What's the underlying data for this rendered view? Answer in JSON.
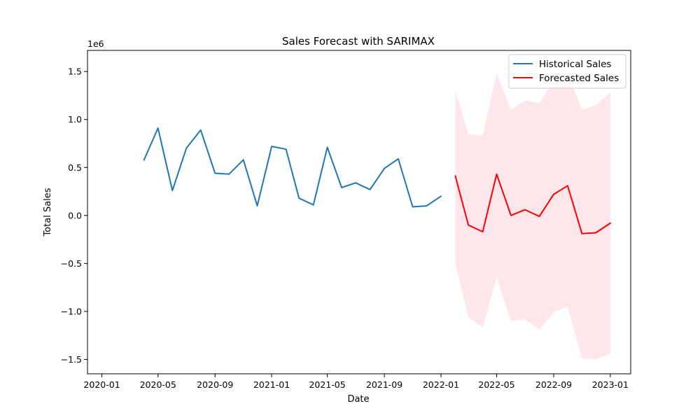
{
  "chart_data": {
    "type": "line",
    "title": "Sales Forecast with SARIMAX",
    "xlabel": "Date",
    "ylabel": "Total Sales",
    "y_offset_label": "1e6",
    "y_unit_multiplier": 1000000,
    "xlim": [
      "2019-12-01",
      "2023-02-14"
    ],
    "ylim": [
      -1.65,
      1.72
    ],
    "x_ticks": [
      "2020-01",
      "2020-05",
      "2020-09",
      "2021-01",
      "2021-05",
      "2021-09",
      "2022-01",
      "2022-05",
      "2022-09",
      "2023-01"
    ],
    "y_ticks": [
      1.5,
      1.0,
      0.5,
      0.0,
      -0.5,
      -1.0,
      -1.5
    ],
    "y_tick_labels": [
      "1.5",
      "1.0",
      "0.5",
      "0.0",
      "−0.5",
      "−1.0",
      "−1.5"
    ],
    "grid": false,
    "legend_position": "top-right",
    "series": [
      {
        "name": "Historical Sales",
        "color": "#1f77b4",
        "x": [
          "2020-04-01",
          "2020-05-01",
          "2020-06-01",
          "2020-07-01",
          "2020-08-01",
          "2020-09-01",
          "2020-10-01",
          "2020-11-01",
          "2020-12-01",
          "2021-01-01",
          "2021-02-01",
          "2021-03-01",
          "2021-04-01",
          "2021-05-01",
          "2021-06-01",
          "2021-07-01",
          "2021-08-01",
          "2021-09-01",
          "2021-10-01",
          "2021-11-01",
          "2021-12-01",
          "2022-01-01"
        ],
        "y": [
          0.58,
          0.91,
          0.26,
          0.7,
          0.89,
          0.44,
          0.43,
          0.58,
          0.1,
          0.72,
          0.69,
          0.18,
          0.11,
          0.71,
          0.29,
          0.34,
          0.27,
          0.49,
          0.59,
          0.09,
          0.1,
          0.2
        ]
      },
      {
        "name": "Forecasted Sales",
        "color": "#ff0000",
        "x": [
          "2022-02-01",
          "2022-03-01",
          "2022-04-01",
          "2022-05-01",
          "2022-06-01",
          "2022-07-01",
          "2022-08-01",
          "2022-09-01",
          "2022-10-01",
          "2022-11-01",
          "2022-12-01",
          "2023-01-01"
        ],
        "y": [
          0.41,
          -0.1,
          -0.17,
          0.43,
          0.0,
          0.06,
          -0.01,
          0.22,
          0.31,
          -0.19,
          -0.18,
          -0.08
        ]
      }
    ],
    "confidence_band": {
      "color": "#ffc0cb",
      "opacity": 0.4,
      "x": [
        "2022-02-01",
        "2022-03-01",
        "2022-04-01",
        "2022-05-01",
        "2022-06-01",
        "2022-07-01",
        "2022-08-01",
        "2022-09-01",
        "2022-10-01",
        "2022-11-01",
        "2022-12-01",
        "2023-01-01"
      ],
      "upper": [
        1.3,
        0.85,
        0.83,
        1.48,
        1.1,
        1.2,
        1.17,
        1.41,
        1.48,
        1.1,
        1.15,
        1.28
      ],
      "lower": [
        -0.5,
        -1.06,
        -1.17,
        -0.64,
        -1.1,
        -1.08,
        -1.19,
        -1.01,
        -0.95,
        -1.49,
        -1.5,
        -1.44
      ]
    }
  }
}
